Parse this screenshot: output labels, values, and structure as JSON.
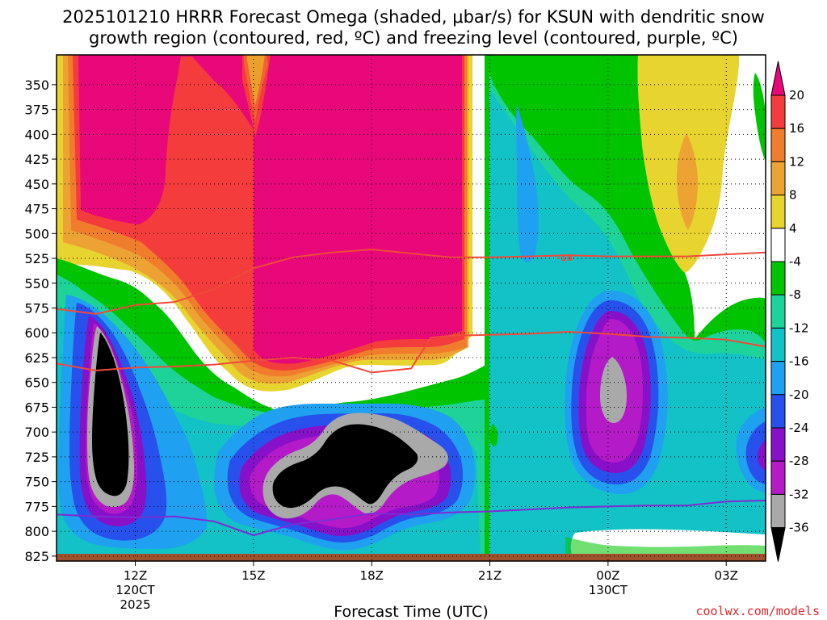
{
  "title_line1": "2025101210 HRRR Forecast Omega (shaded, μbar/s) for KSUN with dendritic snow",
  "title_line2": "growth region (contoured, red, ºC) and freezing level (contoured, purple, ºC)",
  "credit": "coolwx.com/models",
  "chart_data": {
    "type": "heatmap",
    "title": "2025101210 HRRR Forecast Omega (shaded, μbar/s) for KSUN with dendritic snow growth region (contoured, red, ºC) and freezing level (contoured, purple, ºC)",
    "xlabel": "Forecast Time (UTC)",
    "ylabel": "",
    "y_axis": {
      "quantity": "pressure (hPa)",
      "inverted": true,
      "range": [
        830,
        320
      ],
      "ticks": [
        "350",
        "375",
        "400",
        "425",
        "450",
        "475",
        "500",
        "525",
        "550",
        "575",
        "600",
        "625",
        "650",
        "675",
        "700",
        "725",
        "750",
        "775",
        "800",
        "825"
      ]
    },
    "x_axis": {
      "ticks": [
        {
          "label": "12Z",
          "sub1": "120CT",
          "sub2": "2025",
          "hour": 12
        },
        {
          "label": "15Z",
          "sub1": "",
          "sub2": "",
          "hour": 15
        },
        {
          "label": "18Z",
          "sub1": "",
          "sub2": "",
          "hour": 18
        },
        {
          "label": "21Z",
          "sub1": "",
          "sub2": "",
          "hour": 21
        },
        {
          "label": "00Z",
          "sub1": "130CT",
          "sub2": "",
          "hour": 24
        },
        {
          "label": "03Z",
          "sub1": "",
          "sub2": "",
          "hour": 27
        }
      ],
      "range_hours": [
        10,
        28
      ]
    },
    "grid": true,
    "colorbar": {
      "labels": [
        "20",
        "16",
        "12",
        "8",
        "4",
        "-4",
        "-8",
        "-12",
        "-16",
        "-20",
        "-24",
        "-28",
        "-32",
        "-36"
      ],
      "colors": [
        "#e8087a",
        "#f43c3c",
        "#ef7d2c",
        "#eda234",
        "#e8d42e",
        "#ffffff",
        "#00c400",
        "#1ed39a",
        "#12c2c6",
        "#1fa0f0",
        "#2850ec",
        "#8710c8",
        "#b41ac8",
        "#a9a9a9",
        "#000000"
      ]
    },
    "contour_labels": [
      {
        "text": "-18",
        "hour": 22.9,
        "p": 524
      }
    ],
    "dgz_contours": [
      {
        "name": "",
        "color": "#f04a3a",
        "points": [
          [
            10,
            576
          ],
          [
            11,
            581
          ],
          [
            12,
            572
          ],
          [
            13,
            569
          ],
          [
            14,
            556
          ],
          [
            15,
            535
          ],
          [
            16,
            524
          ],
          [
            17,
            519
          ],
          [
            18,
            516
          ],
          [
            19,
            520
          ],
          [
            20,
            524
          ],
          [
            21,
            524
          ],
          [
            22,
            523
          ],
          [
            23,
            522
          ],
          [
            24,
            523
          ],
          [
            25,
            523
          ],
          [
            26,
            523
          ],
          [
            27,
            521
          ],
          [
            28,
            519
          ]
        ]
      },
      {
        "name": "",
        "color": "#f04a3a",
        "points": [
          [
            10,
            631
          ],
          [
            11,
            638
          ],
          [
            12,
            635
          ],
          [
            13,
            634
          ],
          [
            14,
            632
          ],
          [
            15,
            628
          ],
          [
            16,
            625
          ],
          [
            17,
            628
          ],
          [
            18,
            640
          ],
          [
            19,
            636
          ],
          [
            19.5,
            605
          ],
          [
            20,
            603
          ],
          [
            21,
            602
          ],
          [
            22,
            601
          ],
          [
            23,
            599
          ],
          [
            24,
            601
          ],
          [
            25,
            604
          ],
          [
            26,
            605
          ],
          [
            27,
            607
          ],
          [
            28,
            614
          ]
        ]
      }
    ],
    "freezing_level": {
      "name": "",
      "color": "#7d2cd4",
      "points": [
        [
          10,
          783
        ],
        [
          11,
          785
        ],
        [
          12,
          786
        ],
        [
          13,
          785
        ],
        [
          14,
          790
        ],
        [
          15,
          804
        ],
        [
          16,
          793
        ],
        [
          17,
          788
        ],
        [
          18,
          782
        ],
        [
          19,
          783
        ],
        [
          20,
          781
        ],
        [
          21,
          780
        ],
        [
          22,
          778
        ],
        [
          23,
          776
        ],
        [
          24,
          775
        ],
        [
          25,
          774
        ],
        [
          26,
          774
        ],
        [
          27,
          770
        ],
        [
          28,
          769
        ]
      ]
    }
  }
}
